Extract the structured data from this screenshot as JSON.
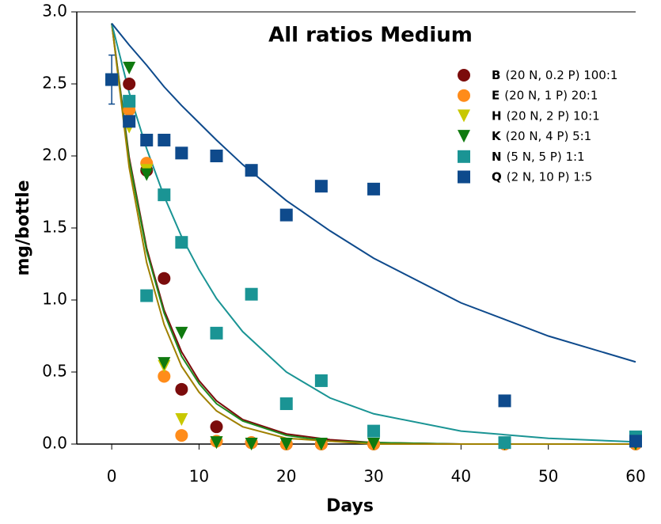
{
  "chart_data": {
    "type": "scatter",
    "title": "All ratios Medium",
    "xlabel": "Days",
    "ylabel": "mg/bottle",
    "xlim": [
      -4,
      60
    ],
    "xticks": [
      0,
      10,
      20,
      30,
      40,
      50,
      60
    ],
    "ylim": [
      0,
      3
    ],
    "yticks": [
      {
        "value": 0,
        "label": "0.0"
      },
      0.5,
      {
        "value": 1,
        "label": "1.0"
      },
      1.5,
      {
        "value": 2,
        "label": "2.0"
      },
      2.5,
      {
        "value": 3,
        "label": "3.0"
      }
    ],
    "x": [
      0,
      2,
      4,
      6,
      8,
      12,
      16,
      20,
      24,
      30,
      45,
      60
    ],
    "series": [
      {
        "name": "B",
        "description": "(20 N, 0.2 P) 100:1",
        "color": "#7b0c0c",
        "marker": "circle",
        "values": [
          2.53,
          2.5,
          1.9,
          1.15,
          0.38,
          0.12,
          0.01,
          0,
          0,
          0,
          0,
          0
        ]
      },
      {
        "name": "E",
        "description": "(20 N, 1 P) 20:1",
        "color": "#ff8c1a",
        "marker": "circle",
        "values": [
          2.53,
          2.32,
          1.95,
          0.47,
          0.06,
          0.02,
          0.01,
          0,
          0,
          0,
          0,
          0
        ]
      },
      {
        "name": "H",
        "description": "(20 N, 2 P) 10:1",
        "color": "#c8c800",
        "marker": "triangle",
        "values": [
          2.53,
          2.2,
          1.9,
          0.54,
          0.17,
          0.01,
          0,
          0,
          0,
          0,
          0,
          0
        ]
      },
      {
        "name": "K",
        "description": "(20 N, 4 P) 5:1",
        "color": "#0f7a0f",
        "marker": "triangle",
        "values": [
          2.53,
          2.61,
          1.87,
          0.56,
          0.77,
          0.01,
          0,
          0,
          0,
          0,
          0,
          0
        ]
      },
      {
        "name": "N",
        "description": "(5 N, 5 P) 1:1",
        "color": "#1a9494",
        "marker": "square",
        "values": [
          2.53,
          2.38,
          1.03,
          1.73,
          1.4,
          0.77,
          1.04,
          0.28,
          0.44,
          0.09,
          0.01,
          0.05
        ]
      },
      {
        "name": "Q",
        "description": "(2 N, 10 P) 1:5",
        "color": "#0e4a8c",
        "marker": "square",
        "values": [
          2.53,
          2.24,
          2.11,
          2.11,
          2.02,
          2.0,
          1.9,
          1.59,
          1.79,
          1.77,
          0.3,
          0.02
        ],
        "errors": [
          0.17,
          null,
          null,
          null,
          null,
          null,
          null,
          null,
          null,
          null,
          null,
          null
        ]
      }
    ],
    "fits": {
      "x": [
        0,
        2,
        4,
        6,
        8,
        10,
        12,
        15,
        20,
        25,
        30,
        40,
        50,
        60
      ],
      "lines": [
        {
          "color": "#7b0c0c",
          "values": [
            2.92,
            1.99,
            1.36,
            0.93,
            0.64,
            0.44,
            0.3,
            0.17,
            0.07,
            0.03,
            0.01,
            0,
            0,
            0
          ]
        },
        {
          "color": "#1f8a1f",
          "values": [
            2.92,
            1.97,
            1.34,
            0.91,
            0.61,
            0.42,
            0.28,
            0.16,
            0.06,
            0.02,
            0.01,
            0,
            0,
            0
          ]
        },
        {
          "color": "#a08000",
          "values": [
            2.92,
            1.92,
            1.26,
            0.83,
            0.54,
            0.36,
            0.23,
            0.12,
            0.04,
            0.02,
            0,
            0,
            0,
            0
          ]
        },
        {
          "color": "#1a9494",
          "values": [
            2.92,
            2.44,
            2.05,
            1.72,
            1.44,
            1.21,
            1.01,
            0.78,
            0.5,
            0.32,
            0.21,
            0.09,
            0.04,
            0.015
          ]
        },
        {
          "color": "#0e4a8c",
          "values": [
            2.92,
            2.77,
            2.63,
            2.48,
            2.35,
            2.23,
            2.11,
            1.94,
            1.69,
            1.48,
            1.29,
            0.98,
            0.75,
            0.57
          ]
        }
      ]
    }
  }
}
